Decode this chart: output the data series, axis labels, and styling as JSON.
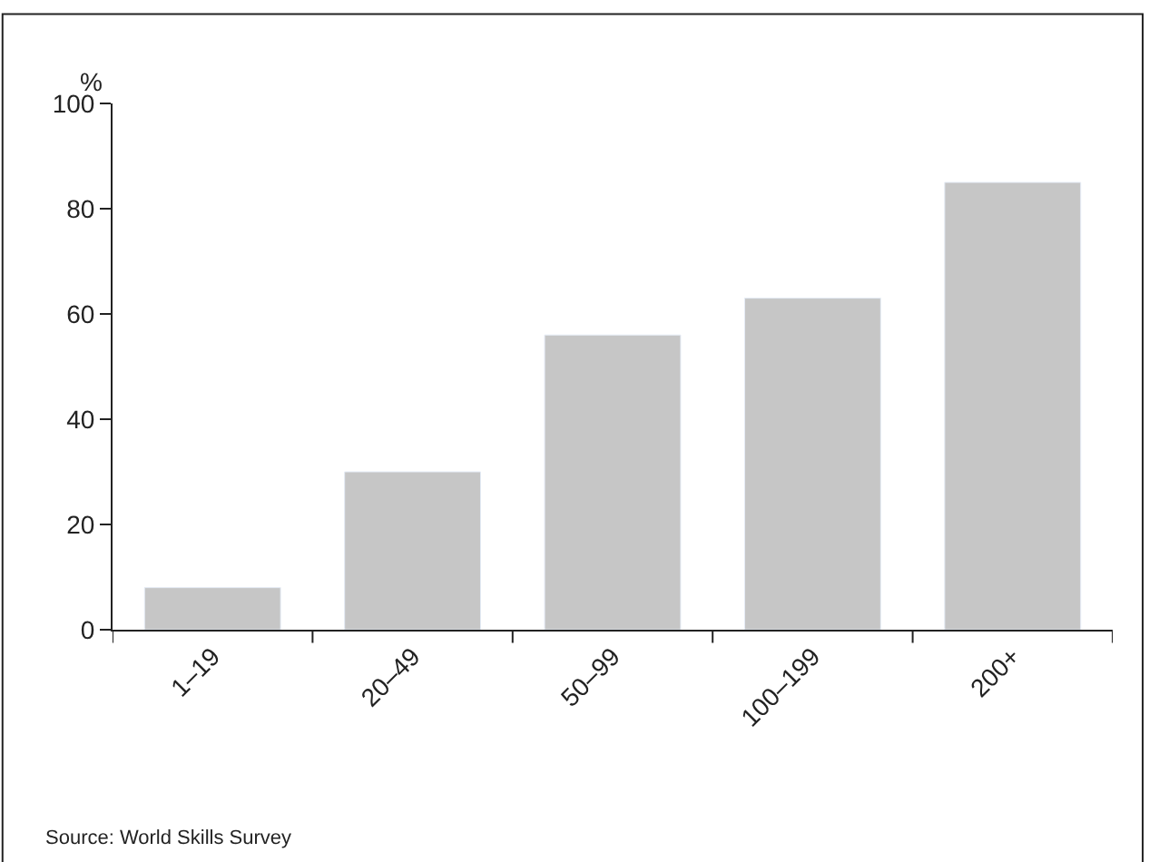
{
  "chart_data": {
    "type": "bar",
    "ylabel": "%",
    "categories": [
      "1–19",
      "20–49",
      "50–99",
      "100–199",
      "200+"
    ],
    "values": [
      8,
      30,
      56,
      63,
      85
    ],
    "color": "#c6c6c6",
    "ylim": [
      0,
      100
    ],
    "yticks": [
      0,
      20,
      40,
      60,
      80,
      100
    ],
    "grid": false,
    "legend": false,
    "annotations": [
      "Source: World Skills Survey"
    ]
  }
}
